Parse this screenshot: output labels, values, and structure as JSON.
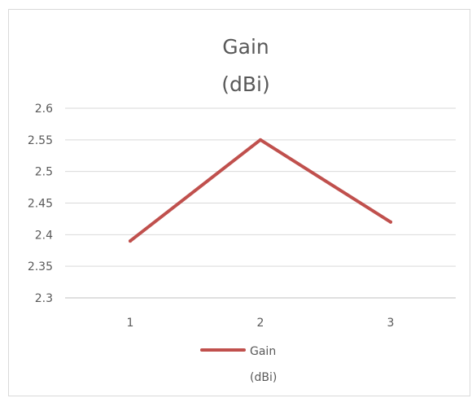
{
  "chart_data": {
    "type": "line",
    "title_lines": [
      "Gain",
      "(dBi)"
    ],
    "xlabel": "",
    "ylabel": "",
    "categories": [
      "1",
      "2",
      "3"
    ],
    "series": [
      {
        "name_lines": [
          "Gain",
          "(dBi)"
        ],
        "values": [
          2.39,
          2.55,
          2.42
        ],
        "color": "#c0504d"
      }
    ],
    "ylim": [
      2.3,
      2.6
    ],
    "yticks": [
      "2.3",
      "2.35",
      "2.4",
      "2.45",
      "2.5",
      "2.55",
      "2.6"
    ],
    "grid": true,
    "legend_position": "bottom"
  }
}
